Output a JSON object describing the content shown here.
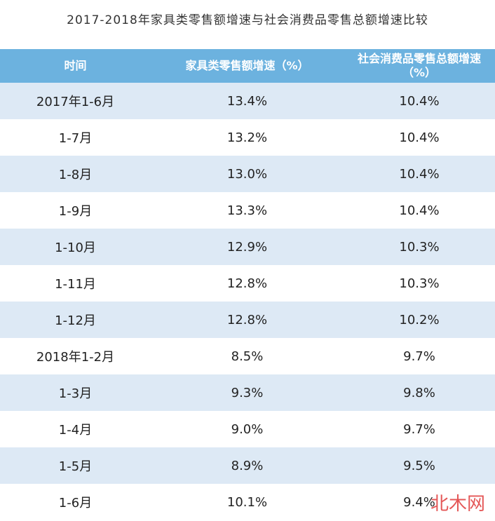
{
  "title": "2017-2018年家具类零售额增速与社会消费品零售总额增速比较",
  "table": {
    "header": [
      "时间",
      "家具类零售额增速（%）",
      "社会消费品零售总额增速（%）"
    ],
    "rows": [
      [
        "2017年1-6月",
        "13.4%",
        "10.4%"
      ],
      [
        "1-7月",
        "13.2%",
        "10.4%"
      ],
      [
        "1-8月",
        "13.0%",
        "10.4%"
      ],
      [
        "1-9月",
        "13.3%",
        "10.4%"
      ],
      [
        "1-10月",
        "12.9%",
        "10.3%"
      ],
      [
        "1-11月",
        "12.8%",
        "10.3%"
      ],
      [
        "1-12月",
        "12.8%",
        "10.2%"
      ],
      [
        "2018年1-2月",
        "8.5%",
        "9.7%"
      ],
      [
        "1-3月",
        "9.3%",
        "9.8%"
      ],
      [
        "1-4月",
        "9.0%",
        "9.7%"
      ],
      [
        "1-5月",
        "8.9%",
        "9.5%"
      ],
      [
        "1-6月",
        "10.1%",
        "9.4%"
      ]
    ]
  },
  "watermark": "北木网"
}
